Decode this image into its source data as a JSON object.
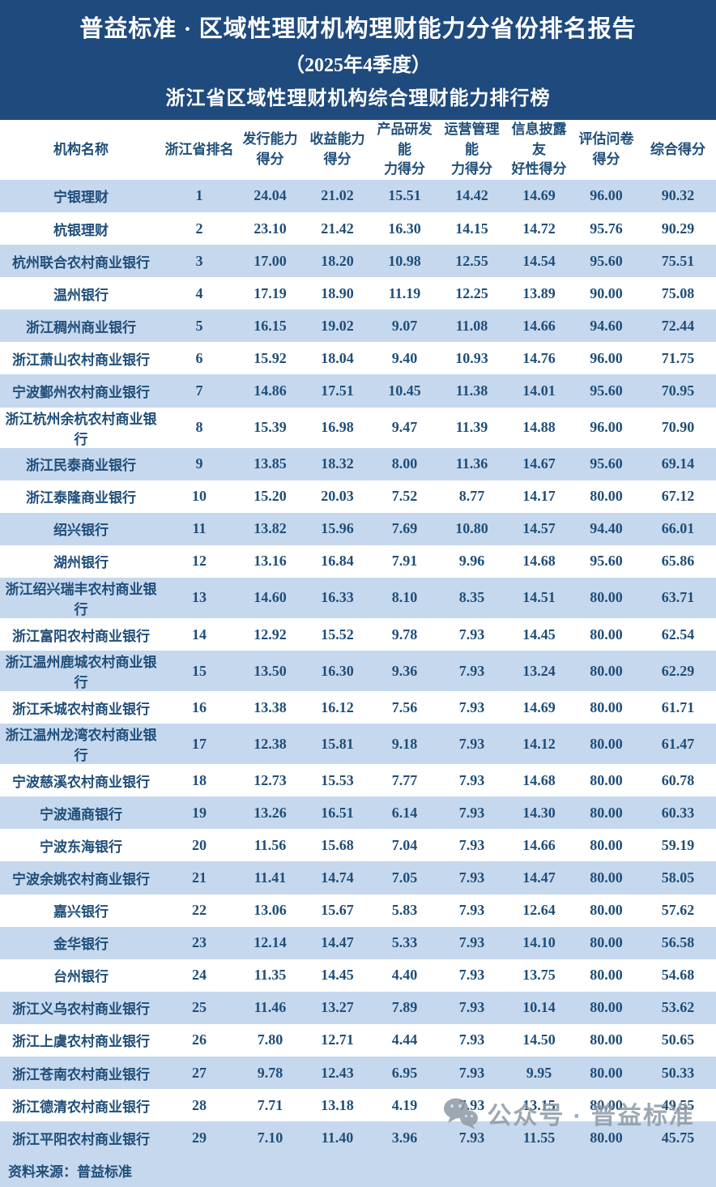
{
  "banner": {
    "title_main": "普益标准 · 区域性理财机构理财能力分省份排名报告",
    "title_sub": "（2025年4季度）",
    "title_section": "浙江省区域性理财机构综合理财能力排行榜"
  },
  "table": {
    "columns": [
      "机构名称",
      "浙江省排名",
      "发行能力\n得分",
      "收益能力\n得分",
      "产品研发能\n力得分",
      "运营管理能\n力得分",
      "信息披露友\n好性得分",
      "评估问卷\n得分",
      "综合得分"
    ],
    "rows": [
      {
        "name": "宁银理财",
        "rank": "1",
        "scores": [
          "24.04",
          "21.02",
          "15.51",
          "14.42",
          "14.69",
          "96.00",
          "90.32"
        ]
      },
      {
        "name": "杭银理财",
        "rank": "2",
        "scores": [
          "23.10",
          "21.42",
          "16.30",
          "14.15",
          "14.72",
          "95.76",
          "90.29"
        ]
      },
      {
        "name": "杭州联合农村商业银行",
        "rank": "3",
        "scores": [
          "17.00",
          "18.20",
          "10.98",
          "12.55",
          "14.54",
          "95.60",
          "75.51"
        ]
      },
      {
        "name": "温州银行",
        "rank": "4",
        "scores": [
          "17.19",
          "18.90",
          "11.19",
          "12.25",
          "13.89",
          "90.00",
          "75.08"
        ]
      },
      {
        "name": "浙江稠州商业银行",
        "rank": "5",
        "scores": [
          "16.15",
          "19.02",
          "9.07",
          "11.08",
          "14.66",
          "94.60",
          "72.44"
        ]
      },
      {
        "name": "浙江萧山农村商业银行",
        "rank": "6",
        "scores": [
          "15.92",
          "18.04",
          "9.40",
          "10.93",
          "14.76",
          "96.00",
          "71.75"
        ]
      },
      {
        "name": "宁波鄞州农村商业银行",
        "rank": "7",
        "scores": [
          "14.86",
          "17.51",
          "10.45",
          "11.38",
          "14.01",
          "95.60",
          "70.95"
        ]
      },
      {
        "name": "浙江杭州余杭农村商业银行",
        "rank": "8",
        "scores": [
          "15.39",
          "16.98",
          "9.47",
          "11.39",
          "14.88",
          "96.00",
          "70.90"
        ]
      },
      {
        "name": "浙江民泰商业银行",
        "rank": "9",
        "scores": [
          "13.85",
          "18.32",
          "8.00",
          "11.36",
          "14.67",
          "95.60",
          "69.14"
        ]
      },
      {
        "name": "浙江泰隆商业银行",
        "rank": "10",
        "scores": [
          "15.20",
          "20.03",
          "7.52",
          "8.77",
          "14.17",
          "80.00",
          "67.12"
        ]
      },
      {
        "name": "绍兴银行",
        "rank": "11",
        "scores": [
          "13.82",
          "15.96",
          "7.69",
          "10.80",
          "14.57",
          "94.40",
          "66.01"
        ]
      },
      {
        "name": "湖州银行",
        "rank": "12",
        "scores": [
          "13.16",
          "16.84",
          "7.91",
          "9.96",
          "14.68",
          "95.60",
          "65.86"
        ]
      },
      {
        "name": "浙江绍兴瑞丰农村商业银行",
        "rank": "13",
        "scores": [
          "14.60",
          "16.33",
          "8.10",
          "8.35",
          "14.51",
          "80.00",
          "63.71"
        ]
      },
      {
        "name": "浙江富阳农村商业银行",
        "rank": "14",
        "scores": [
          "12.92",
          "15.52",
          "9.78",
          "7.93",
          "14.45",
          "80.00",
          "62.54"
        ]
      },
      {
        "name": "浙江温州鹿城农村商业银行",
        "rank": "15",
        "scores": [
          "13.50",
          "16.30",
          "9.36",
          "7.93",
          "13.24",
          "80.00",
          "62.29"
        ]
      },
      {
        "name": "浙江禾城农村商业银行",
        "rank": "16",
        "scores": [
          "13.38",
          "16.12",
          "7.56",
          "7.93",
          "14.69",
          "80.00",
          "61.71"
        ]
      },
      {
        "name": "浙江温州龙湾农村商业银行",
        "rank": "17",
        "scores": [
          "12.38",
          "15.81",
          "9.18",
          "7.93",
          "14.12",
          "80.00",
          "61.47"
        ]
      },
      {
        "name": "宁波慈溪农村商业银行",
        "rank": "18",
        "scores": [
          "12.73",
          "15.53",
          "7.77",
          "7.93",
          "14.68",
          "80.00",
          "60.78"
        ]
      },
      {
        "name": "宁波通商银行",
        "rank": "19",
        "scores": [
          "13.26",
          "16.51",
          "6.14",
          "7.93",
          "14.30",
          "80.00",
          "60.33"
        ]
      },
      {
        "name": "宁波东海银行",
        "rank": "20",
        "scores": [
          "11.56",
          "15.68",
          "7.04",
          "7.93",
          "14.66",
          "80.00",
          "59.19"
        ]
      },
      {
        "name": "宁波余姚农村商业银行",
        "rank": "21",
        "scores": [
          "11.41",
          "14.74",
          "7.05",
          "7.93",
          "14.47",
          "80.00",
          "58.05"
        ]
      },
      {
        "name": "嘉兴银行",
        "rank": "22",
        "scores": [
          "13.06",
          "15.67",
          "5.83",
          "7.93",
          "12.64",
          "80.00",
          "57.62"
        ]
      },
      {
        "name": "金华银行",
        "rank": "23",
        "scores": [
          "12.14",
          "14.47",
          "5.33",
          "7.93",
          "14.10",
          "80.00",
          "56.58"
        ]
      },
      {
        "name": "台州银行",
        "rank": "24",
        "scores": [
          "11.35",
          "14.45",
          "4.40",
          "7.93",
          "13.75",
          "80.00",
          "54.68"
        ]
      },
      {
        "name": "浙江义乌农村商业银行",
        "rank": "25",
        "scores": [
          "11.46",
          "13.27",
          "7.89",
          "7.93",
          "10.14",
          "80.00",
          "53.62"
        ]
      },
      {
        "name": "浙江上虞农村商业银行",
        "rank": "26",
        "scores": [
          "7.80",
          "12.71",
          "4.44",
          "7.93",
          "14.50",
          "80.00",
          "50.65"
        ]
      },
      {
        "name": "浙江苍南农村商业银行",
        "rank": "27",
        "scores": [
          "9.78",
          "12.43",
          "6.95",
          "7.93",
          "9.95",
          "80.00",
          "50.33"
        ]
      },
      {
        "name": "浙江德清农村商业银行",
        "rank": "28",
        "scores": [
          "7.71",
          "13.18",
          "4.19",
          "7.93",
          "13.15",
          "80.00",
          "49.55"
        ]
      },
      {
        "name": "浙江平阳农村商业银行",
        "rank": "29",
        "scores": [
          "7.10",
          "11.40",
          "3.96",
          "7.93",
          "11.55",
          "80.00",
          "45.75"
        ]
      }
    ]
  },
  "footer": {
    "source": "资料来源：普益标准",
    "watermark_text": "公众号 · 普益标准",
    "watermark_icon": "wechat-icon"
  },
  "colors": {
    "banner_bg": "#1f4a7d",
    "row_alt_bg": "#c6d8ee",
    "text_blue": "#1f4e79",
    "watermark_gray": "#8d99a6"
  }
}
